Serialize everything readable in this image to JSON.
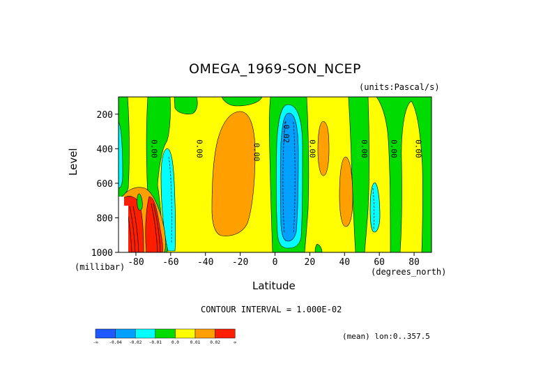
{
  "chart_data": {
    "type": "heatmap",
    "title": "OMEGA_1969-SON_NCEP",
    "units": "(units:Pascal/s)",
    "xlabel": "Latitude",
    "x_unit_label": "(degrees_north)",
    "ylabel": "Level",
    "y_unit_label": "(millibar)",
    "x_ticks": [
      -80,
      -60,
      -40,
      -20,
      0,
      20,
      40,
      60,
      80
    ],
    "x_tick_labels": [
      "-80",
      "-60",
      "-40",
      "-20",
      "0",
      "20",
      "40",
      "60",
      "80"
    ],
    "y_ticks": [
      200,
      400,
      600,
      800,
      1000
    ],
    "y_tick_labels": [
      "200",
      "400",
      "600",
      "800",
      "1000"
    ],
    "xlim": [
      -90,
      90
    ],
    "ylim": [
      1000,
      100
    ],
    "contour_interval_text": "CONTOUR INTERVAL = 1.000E-02",
    "contour_labels": [
      {
        "text": "0.00",
        "lat": -71,
        "lev": 400
      },
      {
        "text": "0.00",
        "lat": -45,
        "lev": 400
      },
      {
        "text": "0.00",
        "lat": -12,
        "lev": 420
      },
      {
        "text": "-0.02",
        "lat": 5,
        "lev": 300
      },
      {
        "text": "0.00",
        "lat": 20,
        "lev": 400
      },
      {
        "text": "0.00",
        "lat": 50,
        "lev": 400
      },
      {
        "text": "0.00",
        "lat": 67,
        "lev": 400
      },
      {
        "text": "0.00",
        "lat": 81,
        "lev": 400
      }
    ],
    "regions": [
      {
        "name": "positive cell",
        "lat_range": [
          -43,
          -10
        ],
        "lev_range": [
          150,
          1000
        ],
        "peak_class": "0.01 to 0.02"
      },
      {
        "name": "negative cell",
        "lat_range": [
          0,
          17
        ],
        "lev_range": [
          100,
          990
        ],
        "peak_class": "-0.04 to -0.02"
      },
      {
        "name": "negative cell",
        "lat_range": [
          -67,
          -58
        ],
        "lev_range": [
          270,
          1000
        ],
        "peak_class": "-0.02 to -0.01"
      },
      {
        "name": "positive cell",
        "lat_range": [
          23,
          31
        ],
        "lev_range": [
          200,
          630
        ],
        "peak_class": "0.01 to 0.02"
      },
      {
        "name": "positive cell",
        "lat_range": [
          33,
          44
        ],
        "lev_range": [
          320,
          840
        ],
        "peak_class": "0.01 to 0.02"
      },
      {
        "name": "negative cell",
        "lat_range": [
          49,
          57
        ],
        "lev_range": [
          590,
          910
        ],
        "peak_class": "-0.02 to -0.01"
      },
      {
        "name": "strong positive",
        "lat_range": [
          -88,
          -62
        ],
        "lev_range": [
          650,
          1000
        ],
        "peak_class": "> 0.02"
      }
    ],
    "legend": {
      "colors": [
        "#1e5aff",
        "#00a0ff",
        "#00ffff",
        "#00dc00",
        "#ffff00",
        "#ffa000",
        "#ff1e00"
      ],
      "labels": [
        "-∞",
        "-0.04",
        "-0.02",
        "-0.01",
        "0.0",
        "0.01",
        "0.02",
        "∞"
      ]
    },
    "grid": false
  },
  "footer": {
    "mean_text": "(mean) lon:0..357.5"
  }
}
